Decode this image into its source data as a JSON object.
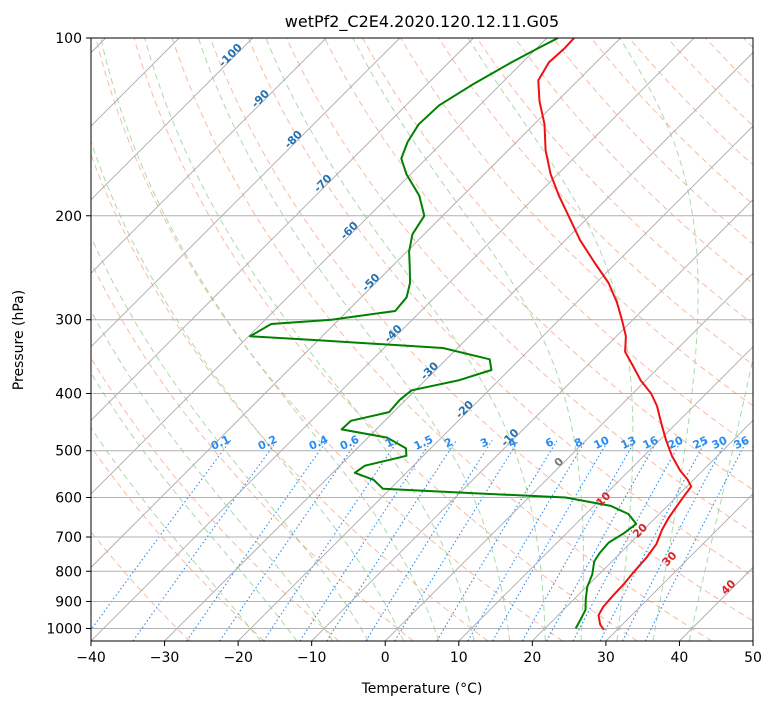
{
  "chart_data": {
    "type": "line",
    "title": "wetPf2_C2E4.2020.120.12.11.G05",
    "xlabel": "Temperature (°C)",
    "ylabel": "Pressure (hPa)",
    "xlim": [
      -40,
      50
    ],
    "ylim": [
      1050,
      100
    ],
    "y_scale": "log",
    "grid": true,
    "x_ticks": [
      -40,
      -30,
      -20,
      -10,
      0,
      10,
      20,
      30,
      40,
      50
    ],
    "y_ticks": [
      100,
      200,
      300,
      400,
      500,
      600,
      700,
      800,
      900,
      1000
    ],
    "x_tick_labels": [
      "−40",
      "−30",
      "−20",
      "−10",
      "0",
      "10",
      "20",
      "30",
      "40",
      "50"
    ],
    "y_tick_labels": [
      "100",
      "200",
      "300",
      "400",
      "500",
      "600",
      "700",
      "800",
      "900",
      "1000"
    ],
    "skew_degrees": 45,
    "background_lines": {
      "isotherm_labels": [
        "-100",
        "-90",
        "-80",
        "-70",
        "-60",
        "-50",
        "-40",
        "-30",
        "-20",
        "-10",
        "0"
      ],
      "moist_adiabat_labels": [
        "10",
        "20",
        "30",
        "40"
      ],
      "mixing_ratio_labels": [
        "0.1",
        "0.2",
        "0.4",
        "0.6",
        "1",
        "1.5",
        "2",
        "3",
        "4",
        "6",
        "8",
        "10",
        "13",
        "16",
        "20",
        "25",
        "30",
        "36"
      ],
      "colors": {
        "isotherm": "#aaaaaa",
        "isotherm_label": "#2472b3",
        "dry_adiabat": "#f6a582",
        "moist_adiabat": "#8fcc8f",
        "mixing_ratio": "#2a8cf0",
        "moist_label": "#d62728",
        "grid": "#b0b0b0"
      }
    },
    "series": [
      {
        "color": "#ee1111",
        "points": [
          {
            "p": 1005,
            "t": 28.2
          },
          {
            "p": 985,
            "t": 27.0
          },
          {
            "p": 950,
            "t": 25.5
          },
          {
            "p": 920,
            "t": 25.0
          },
          {
            "p": 880,
            "t": 24.8
          },
          {
            "p": 840,
            "t": 24.7
          },
          {
            "p": 800,
            "t": 24.4
          },
          {
            "p": 760,
            "t": 24.2
          },
          {
            "p": 720,
            "t": 23.7
          },
          {
            "p": 680,
            "t": 22.5
          },
          {
            "p": 650,
            "t": 21.8
          },
          {
            "p": 620,
            "t": 21.3
          },
          {
            "p": 595,
            "t": 20.9
          },
          {
            "p": 575,
            "t": 20.6
          },
          {
            "p": 560,
            "t": 19.2
          },
          {
            "p": 540,
            "t": 16.9
          },
          {
            "p": 510,
            "t": 13.8
          },
          {
            "p": 480,
            "t": 10.9
          },
          {
            "p": 450,
            "t": 8.0
          },
          {
            "p": 420,
            "t": 5.0
          },
          {
            "p": 400,
            "t": 2.5
          },
          {
            "p": 380,
            "t": -0.7
          },
          {
            "p": 360,
            "t": -3.6
          },
          {
            "p": 340,
            "t": -6.7
          },
          {
            "p": 320,
            "t": -8.7
          },
          {
            "p": 300,
            "t": -11.5
          },
          {
            "p": 280,
            "t": -14.6
          },
          {
            "p": 260,
            "t": -18.3
          },
          {
            "p": 240,
            "t": -23.0
          },
          {
            "p": 220,
            "t": -28.0
          },
          {
            "p": 200,
            "t": -32.9
          },
          {
            "p": 185,
            "t": -36.9
          },
          {
            "p": 170,
            "t": -41.0
          },
          {
            "p": 155,
            "t": -44.9
          },
          {
            "p": 140,
            "t": -48.6
          },
          {
            "p": 128,
            "t": -52.4
          },
          {
            "p": 118,
            "t": -55.4
          },
          {
            "p": 110,
            "t": -56.4
          },
          {
            "p": 104,
            "t": -56.2
          },
          {
            "p": 100,
            "t": -56.3
          }
        ]
      },
      {
        "color": "#008000",
        "points": [
          {
            "p": 1000,
            "t": 24.2
          },
          {
            "p": 970,
            "t": 23.7
          },
          {
            "p": 930,
            "t": 23.0
          },
          {
            "p": 890,
            "t": 21.5
          },
          {
            "p": 850,
            "t": 20.1
          },
          {
            "p": 810,
            "t": 19.1
          },
          {
            "p": 770,
            "t": 17.6
          },
          {
            "p": 745,
            "t": 17.2
          },
          {
            "p": 715,
            "t": 17.0
          },
          {
            "p": 690,
            "t": 17.8
          },
          {
            "p": 665,
            "t": 18.2
          },
          {
            "p": 640,
            "t": 15.8
          },
          {
            "p": 620,
            "t": 12.3
          },
          {
            "p": 600,
            "t": 5.0
          },
          {
            "p": 590,
            "t": -8.0
          },
          {
            "p": 580,
            "t": -21.0
          },
          {
            "p": 560,
            "t": -23.5
          },
          {
            "p": 545,
            "t": -27.0
          },
          {
            "p": 530,
            "t": -26.6
          },
          {
            "p": 510,
            "t": -22.3
          },
          {
            "p": 495,
            "t": -23.4
          },
          {
            "p": 475,
            "t": -27.4
          },
          {
            "p": 460,
            "t": -34.7
          },
          {
            "p": 445,
            "t": -34.6
          },
          {
            "p": 430,
            "t": -30.6
          },
          {
            "p": 410,
            "t": -30.8
          },
          {
            "p": 395,
            "t": -30.5
          },
          {
            "p": 380,
            "t": -25.5
          },
          {
            "p": 365,
            "t": -22.4
          },
          {
            "p": 350,
            "t": -24.1
          },
          {
            "p": 335,
            "t": -32.0
          },
          {
            "p": 325,
            "t": -50.0
          },
          {
            "p": 320,
            "t": -59.8
          },
          {
            "p": 305,
            "t": -58.6
          },
          {
            "p": 300,
            "t": -51.0
          },
          {
            "p": 290,
            "t": -43.5
          },
          {
            "p": 275,
            "t": -43.8
          },
          {
            "p": 260,
            "t": -45.3
          },
          {
            "p": 245,
            "t": -47.4
          },
          {
            "p": 230,
            "t": -49.7
          },
          {
            "p": 215,
            "t": -51.6
          },
          {
            "p": 200,
            "t": -52.5
          },
          {
            "p": 185,
            "t": -55.9
          },
          {
            "p": 170,
            "t": -60.6
          },
          {
            "p": 160,
            "t": -63.4
          },
          {
            "p": 150,
            "t": -64.8
          },
          {
            "p": 140,
            "t": -65.7
          },
          {
            "p": 130,
            "t": -65.5
          },
          {
            "p": 120,
            "t": -63.8
          },
          {
            "p": 110,
            "t": -61.5
          },
          {
            "p": 104,
            "t": -59.8
          },
          {
            "p": 100,
            "t": -58.5
          }
        ]
      }
    ]
  }
}
